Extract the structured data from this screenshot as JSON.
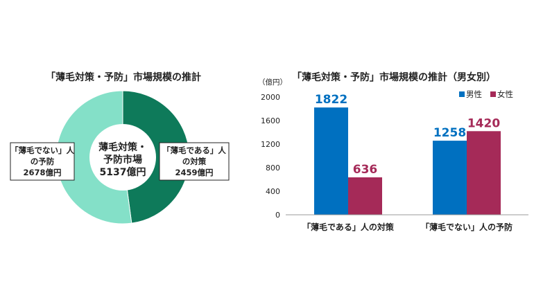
{
  "chart_data": [
    {
      "type": "pie",
      "donut": true,
      "title": "「薄毛対策・予防」市場規模の推計",
      "center_label": [
        "薄毛対策・",
        "予防市場",
        "5137億円"
      ],
      "slices": [
        {
          "label": [
            "「薄毛である」人",
            "の対策",
            "2459億円"
          ],
          "value": 2459,
          "color": "#0e7a5a"
        },
        {
          "label": [
            "「薄毛でない」人",
            "の予防",
            "2678億円"
          ],
          "value": 2678,
          "color": "#84e0c8"
        }
      ]
    },
    {
      "type": "bar",
      "title": "「薄毛対策・予防」市場規模の推計（男女別）",
      "unit_label": "（億円）",
      "categories": [
        "「薄毛である」人の対策",
        "「薄毛でない」人の予防"
      ],
      "series": [
        {
          "name": "男性",
          "values": [
            1822,
            1258
          ],
          "color": "#0070c0"
        },
        {
          "name": "女性",
          "values": [
            636,
            1420
          ],
          "color": "#a52a58"
        }
      ],
      "ylim": [
        0,
        2000
      ],
      "yticks": [
        "0",
        "400",
        "800",
        "1200",
        "1600",
        "2000"
      ],
      "legend_position": "top-right",
      "grid": false
    }
  ]
}
